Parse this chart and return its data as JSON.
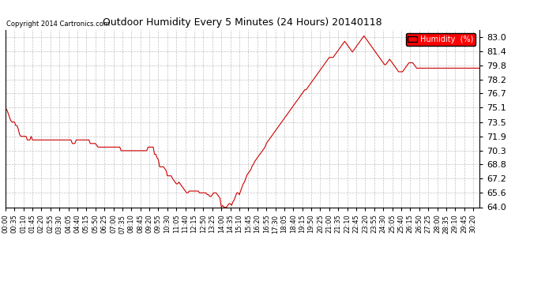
{
  "title": "Outdoor Humidity Every 5 Minutes (24 Hours) 20140118",
  "copyright": "Copyright 2014 Cartronics.com",
  "legend_label": "Humidity  (%)",
  "legend_bg": "#ff0000",
  "legend_fg": "#ffffff",
  "line_color": "#cc0000",
  "bg_color": "#ffffff",
  "grid_color": "#bbbbbb",
  "ylim": [
    64.0,
    83.8
  ],
  "yticks": [
    64.0,
    65.6,
    67.2,
    68.8,
    70.3,
    71.9,
    73.5,
    75.1,
    76.7,
    78.2,
    79.8,
    81.4,
    83.0
  ],
  "humidity_data": [
    74.9,
    74.9,
    74.5,
    74.1,
    73.7,
    73.5,
    73.5,
    73.5,
    73.1,
    73.1,
    72.7,
    72.1,
    71.9,
    71.9,
    71.9,
    71.9,
    71.9,
    71.5,
    71.5,
    71.5,
    71.9,
    71.5,
    71.5,
    71.5,
    71.5,
    71.5,
    71.5,
    71.5,
    71.5,
    71.5,
    71.5,
    71.5,
    71.5,
    71.5,
    71.5,
    71.5,
    71.5,
    71.5,
    71.5,
    71.5,
    71.5,
    71.5,
    71.5,
    71.5,
    71.5,
    71.5,
    71.5,
    71.5,
    71.5,
    71.5,
    71.5,
    71.5,
    71.1,
    71.1,
    71.1,
    71.5,
    71.5,
    71.5,
    71.5,
    71.5,
    71.5,
    71.5,
    71.5,
    71.5,
    71.5,
    71.5,
    71.1,
    71.1,
    71.1,
    71.1,
    71.1,
    70.9,
    70.7,
    70.7,
    70.7,
    70.7,
    70.7,
    70.7,
    70.7,
    70.7,
    70.7,
    70.7,
    70.7,
    70.7,
    70.7,
    70.7,
    70.7,
    70.7,
    70.7,
    70.7,
    70.3,
    70.3,
    70.3,
    70.3,
    70.3,
    70.3,
    70.3,
    70.3,
    70.3,
    70.3,
    70.3,
    70.3,
    70.3,
    70.3,
    70.3,
    70.3,
    70.3,
    70.3,
    70.3,
    70.3,
    70.3,
    70.7,
    70.7,
    70.7,
    70.7,
    70.7,
    69.9,
    69.9,
    69.5,
    69.3,
    68.5,
    68.5,
    68.5,
    68.5,
    68.3,
    68.1,
    67.5,
    67.5,
    67.5,
    67.5,
    67.2,
    67.0,
    66.8,
    66.6,
    66.6,
    66.8,
    66.6,
    66.4,
    66.2,
    66.0,
    65.8,
    65.6,
    65.6,
    65.8,
    65.8,
    65.8,
    65.8,
    65.8,
    65.8,
    65.8,
    65.8,
    65.6,
    65.6,
    65.6,
    65.6,
    65.6,
    65.6,
    65.4,
    65.4,
    65.2,
    65.2,
    65.4,
    65.6,
    65.6,
    65.6,
    65.4,
    65.2,
    65.0,
    64.0,
    64.2,
    64.0,
    64.0,
    64.0,
    64.2,
    64.4,
    64.4,
    64.2,
    64.6,
    64.8,
    65.2,
    65.6,
    65.6,
    65.4,
    65.8,
    66.2,
    66.6,
    66.8,
    67.2,
    67.6,
    67.8,
    68.0,
    68.2,
    68.6,
    68.8,
    69.1,
    69.3,
    69.5,
    69.7,
    69.9,
    70.1,
    70.3,
    70.5,
    70.7,
    71.1,
    71.3,
    71.5,
    71.7,
    71.9,
    72.1,
    72.3,
    72.5,
    72.7,
    72.9,
    73.1,
    73.3,
    73.5,
    73.7,
    73.9,
    74.1,
    74.3,
    74.5,
    74.7,
    74.9,
    75.1,
    75.3,
    75.5,
    75.7,
    75.9,
    76.1,
    76.3,
    76.5,
    76.7,
    76.9,
    77.1,
    77.1,
    77.3,
    77.5,
    77.7,
    77.9,
    78.1,
    78.3,
    78.5,
    78.7,
    78.9,
    79.1,
    79.3,
    79.5,
    79.7,
    79.9,
    80.1,
    80.3,
    80.5,
    80.7,
    80.7,
    80.7,
    80.7,
    80.9,
    81.1,
    81.3,
    81.5,
    81.7,
    81.9,
    82.1,
    82.3,
    82.5,
    82.3,
    82.1,
    81.9,
    81.7,
    81.5,
    81.3,
    81.5,
    81.7,
    81.9,
    82.1,
    82.3,
    82.5,
    82.7,
    82.9,
    83.1,
    82.9,
    82.7,
    82.5,
    82.3,
    82.1,
    81.9,
    81.7,
    81.5,
    81.3,
    81.1,
    80.9,
    80.7,
    80.5,
    80.3,
    80.1,
    79.9,
    79.9,
    80.1,
    80.3,
    80.5,
    80.3,
    80.1,
    79.9,
    79.7,
    79.5,
    79.3,
    79.1,
    79.1,
    79.1,
    79.1,
    79.3,
    79.5,
    79.7,
    79.9,
    80.1,
    80.1,
    80.1,
    80.1,
    79.9,
    79.7,
    79.5,
    79.5,
    79.5,
    79.5,
    79.5,
    79.5,
    79.5,
    79.5,
    79.5,
    79.5,
    79.5,
    79.5,
    79.5,
    79.5,
    79.5,
    79.5,
    79.5,
    79.5,
    79.5,
    79.5,
    79.5,
    79.5,
    79.5,
    79.5,
    79.5,
    79.5,
    79.5,
    79.5,
    79.5,
    79.5,
    79.5,
    79.5,
    79.5,
    79.5,
    79.5,
    79.5,
    79.5,
    79.5,
    79.5,
    79.5,
    79.5,
    79.5,
    79.5,
    79.5,
    79.5,
    79.5,
    79.5,
    79.5,
    79.5,
    79.5
  ],
  "xtick_step": 7,
  "data_step_minutes": 5
}
